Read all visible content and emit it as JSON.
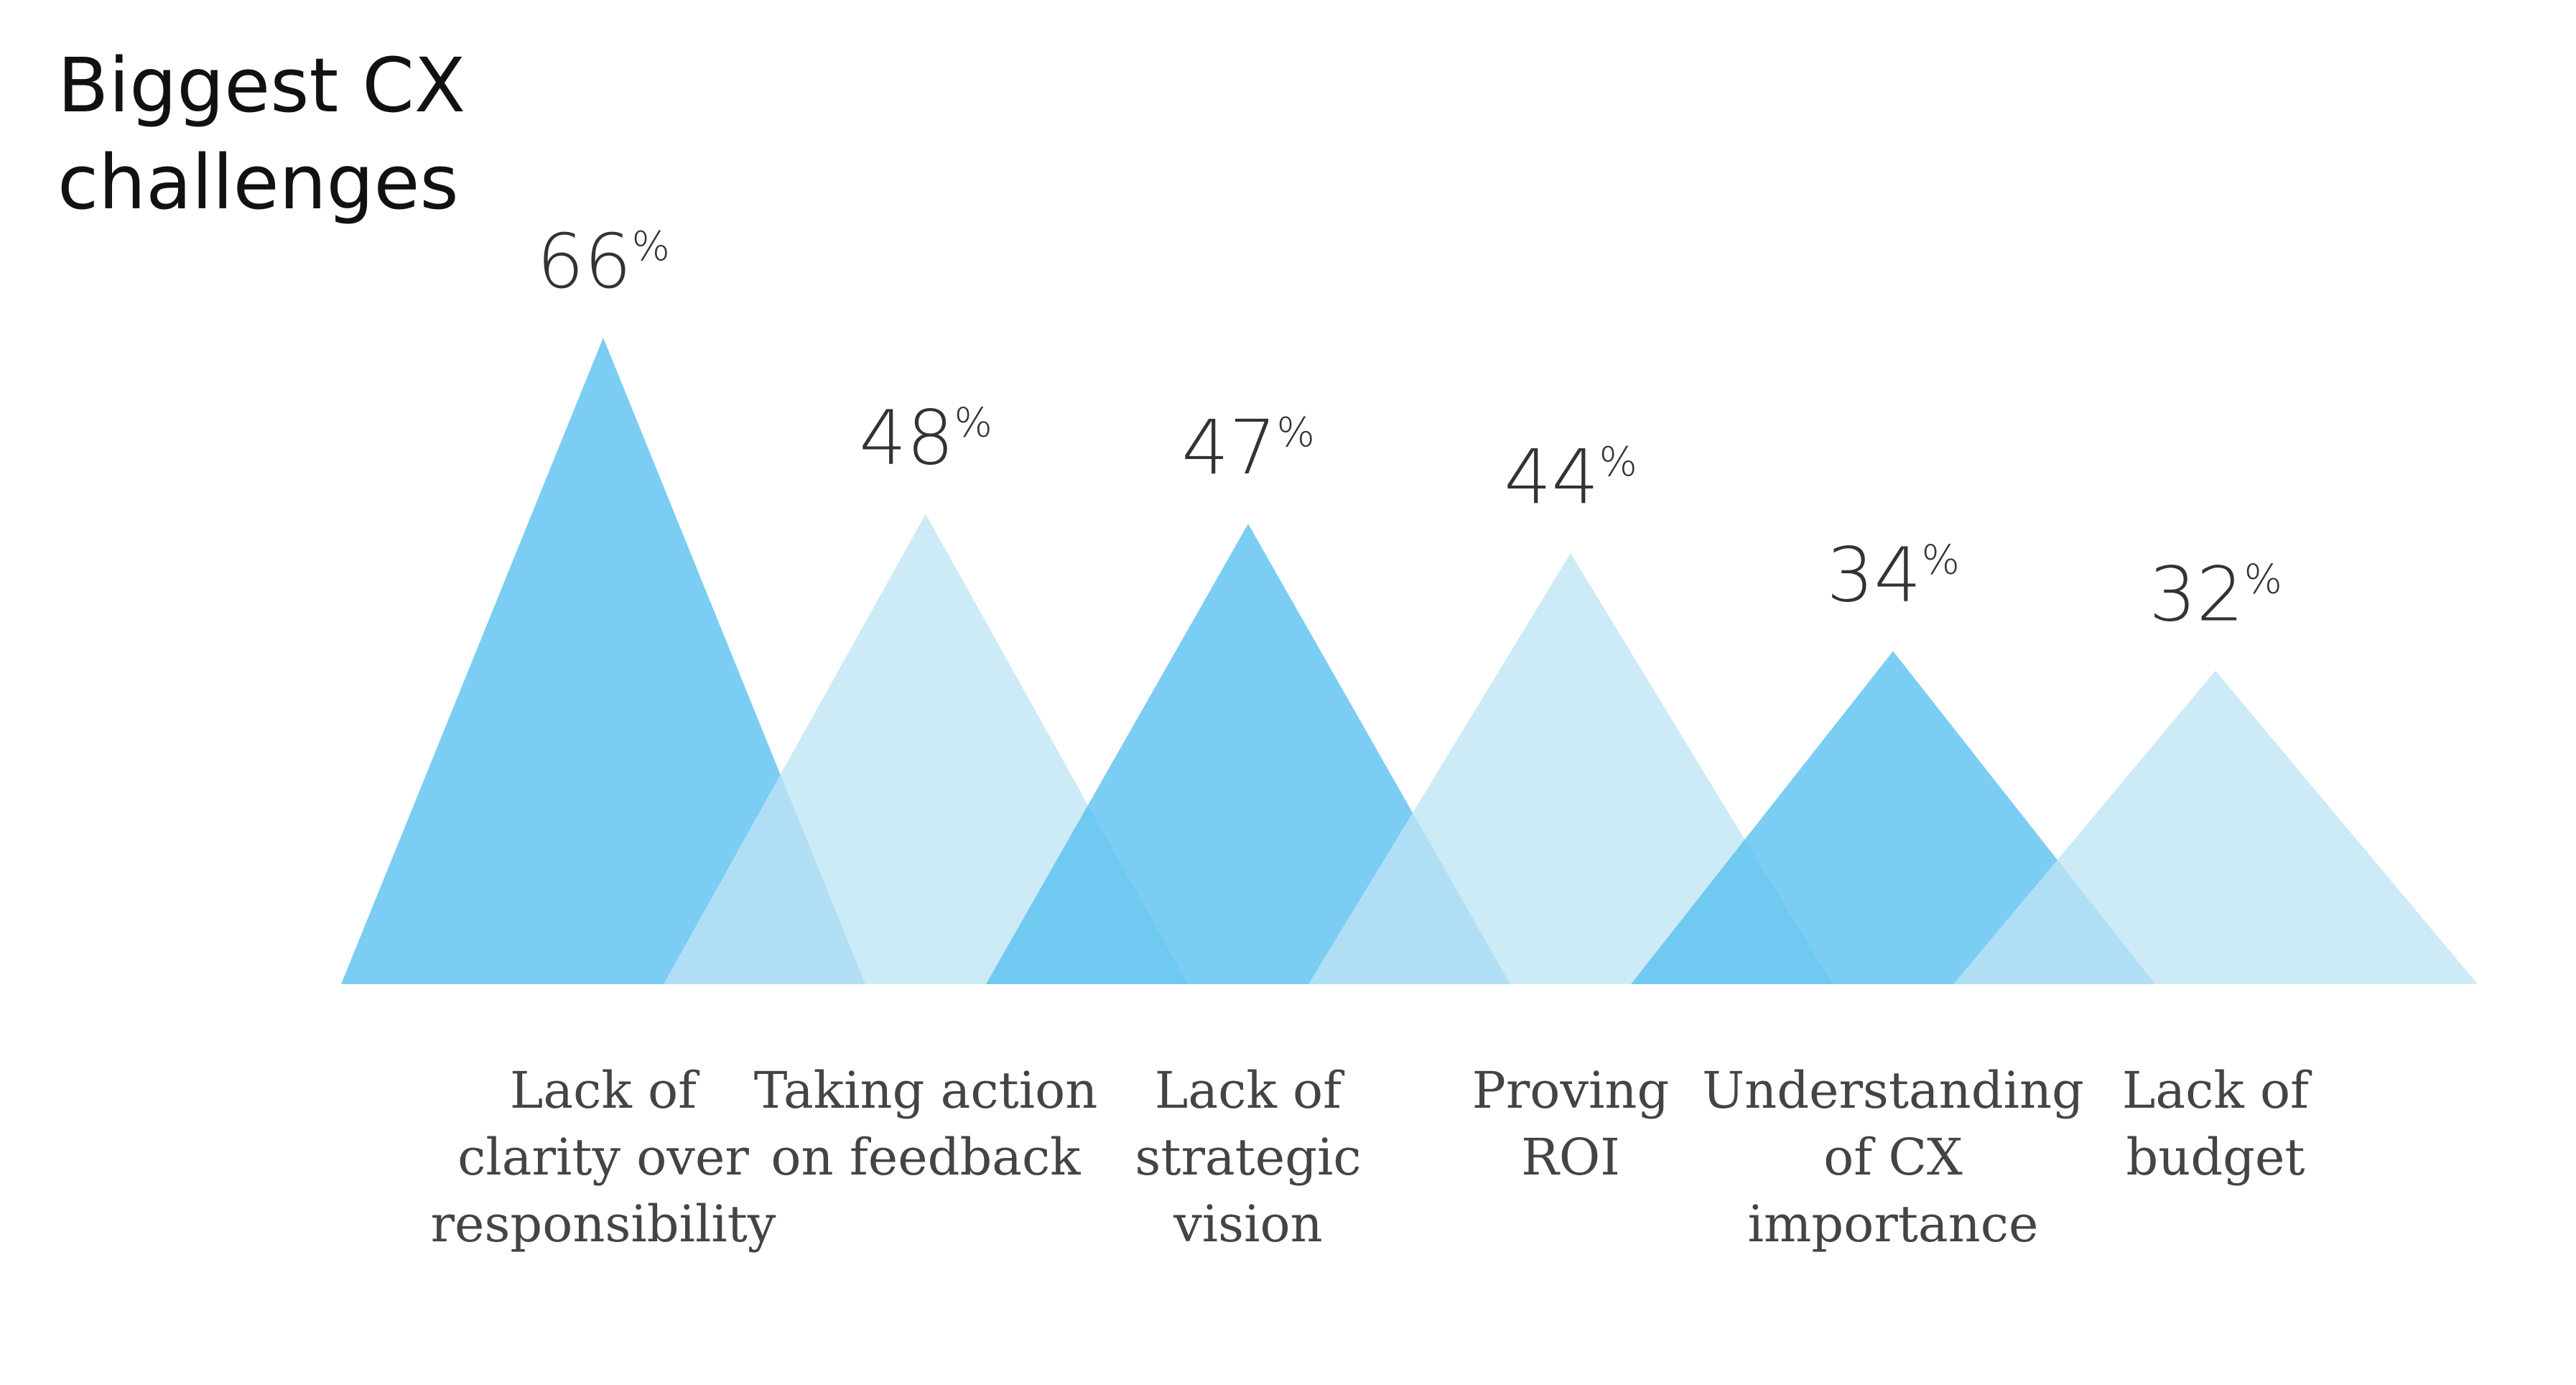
{
  "chart_data": {
    "type": "bar",
    "title": "Biggest CX challenges",
    "title_lines": [
      "Biggest CX",
      "challenges"
    ],
    "value_suffix": "%",
    "categories": [
      "Lack of clarity over responsibility",
      "Taking action on feedback",
      "Lack of strategic vision",
      "Proving ROI",
      "Understanding of CX importance",
      "Lack of budget"
    ],
    "category_lines": [
      [
        "Lack of",
        "clarity over",
        "responsibility"
      ],
      [
        "Taking action",
        "on feedback"
      ],
      [
        "Lack of",
        "strategic",
        "vision"
      ],
      [
        "Proving",
        "ROI"
      ],
      [
        "Understanding",
        "of CX",
        "importance"
      ],
      [
        "Lack of",
        "budget"
      ]
    ],
    "values": [
      66,
      48,
      47,
      44,
      34,
      32
    ],
    "ylim": [
      0,
      66
    ],
    "xlabel": "",
    "ylabel": "",
    "legend": "none",
    "grid": false,
    "colors": {
      "dark": "#56bfef",
      "light": "#bfe4f5",
      "title": "#111111",
      "value": "#333333",
      "category": "#444444"
    }
  }
}
